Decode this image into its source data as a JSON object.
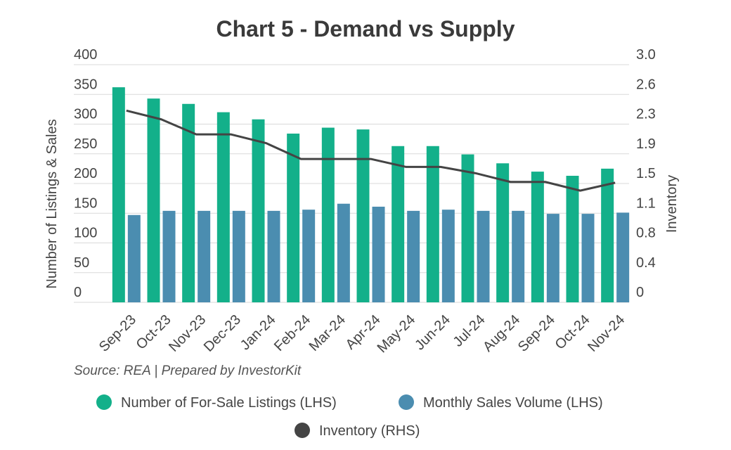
{
  "chart_data": {
    "type": "bar",
    "title": "Chart 5 - Demand vs Supply",
    "source": "Source: REA | Prepared by InvestorKit",
    "ylabel": "Number of Listings & Sales",
    "y2label": "Inventory",
    "categories": [
      "Sep-23",
      "Oct-23",
      "Nov-23",
      "Dec-23",
      "Jan-24",
      "Feb-24",
      "Mar-24",
      "Apr-24",
      "May-24",
      "Jun-24",
      "Jul-24",
      "Aug-24",
      "Sep-24",
      "Oct-24",
      "Nov-24"
    ],
    "series": [
      {
        "name": "Number of For-Sale Listings (LHS)",
        "color": "#13b08a",
        "type": "bar",
        "values": [
          362,
          343,
          334,
          320,
          308,
          284,
          294,
          291,
          263,
          263,
          249,
          234,
          220,
          213,
          225
        ]
      },
      {
        "name": "Monthly Sales Volume (LHS)",
        "color": "#4b8db0",
        "type": "bar",
        "values": [
          147,
          154,
          154,
          154,
          154,
          156,
          166,
          161,
          154,
          156,
          154,
          154,
          149,
          149,
          151
        ]
      },
      {
        "name": "Inventory (RHS)",
        "color": "#444444",
        "type": "line",
        "axis": "y2",
        "values": [
          2.42,
          2.31,
          2.12,
          2.12,
          2.01,
          1.81,
          1.81,
          1.81,
          1.71,
          1.71,
          1.63,
          1.52,
          1.52,
          1.41,
          1.51
        ]
      }
    ],
    "ylim": [
      0,
      400
    ],
    "yticks": [
      0,
      50,
      100,
      150,
      200,
      250,
      300,
      350,
      400
    ],
    "y2lim": [
      0,
      3
    ],
    "y2ticks": [
      0,
      {
        "value": 0.375,
        "label": "0.4"
      },
      {
        "value": 0.75,
        "label": "0.8"
      },
      {
        "value": 1.125,
        "label": "1.1"
      },
      1.5,
      {
        "value": 1.875,
        "label": "1.9"
      },
      {
        "value": 2.25,
        "label": "2.3"
      },
      {
        "value": 2.625,
        "label": "2.6"
      },
      {
        "value": 3,
        "label": "3.0"
      }
    ],
    "grid": true
  }
}
